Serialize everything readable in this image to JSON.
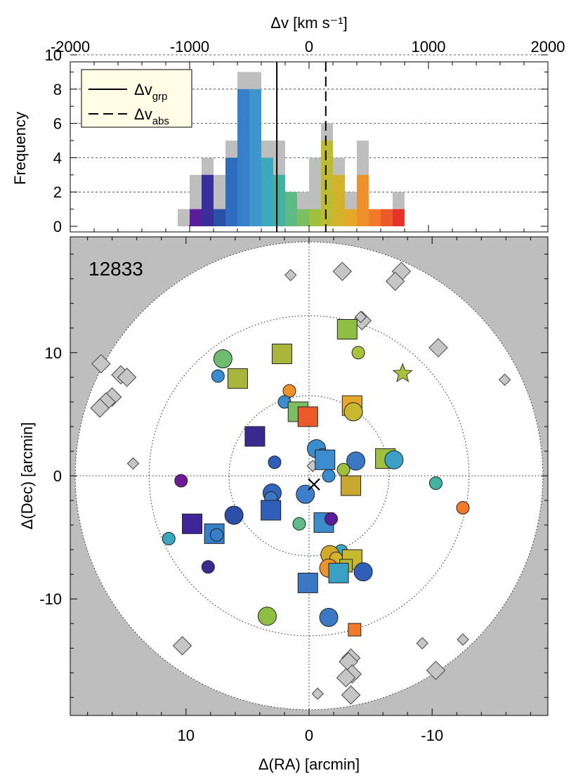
{
  "chart_data": [
    {
      "type": "bar",
      "panel": "histogram",
      "xlabel_top": "Δv [km s⁻¹]",
      "ylabel": "Frequency",
      "xlim": [
        -2000,
        2000
      ],
      "ylim": [
        0,
        10
      ],
      "xticks": [
        "-2000",
        "-1000",
        "0",
        "1000",
        "2000"
      ],
      "yticks": [
        "0",
        "2",
        "4",
        "6",
        "8",
        "10"
      ],
      "grid": "dashed horizontal at 2,4,6,8,10",
      "bin_width": 100,
      "bins_left_edge": [
        -1100,
        -1000,
        -900,
        -800,
        -700,
        -600,
        -500,
        -400,
        -300,
        -200,
        -100,
        0,
        100,
        200,
        300,
        400,
        500,
        600,
        700
      ],
      "total_counts": [
        1,
        3,
        4,
        3,
        5,
        9,
        9,
        5,
        5,
        2,
        2,
        4,
        6,
        4,
        2,
        5,
        1,
        1,
        2
      ],
      "member_counts": [
        0,
        1,
        3,
        1,
        4,
        8,
        8,
        4,
        3,
        2,
        1,
        1,
        5,
        3,
        1,
        3,
        1,
        1,
        1
      ],
      "member_colors": [
        "#7b12a0",
        "#5b1d9a",
        "#3a2f9a",
        "#2c4fa6",
        "#2e6cbf",
        "#3580c9",
        "#3f96cc",
        "#3aaabf",
        "#42b39f",
        "#5ebb86",
        "#7cbf62",
        "#9fbf3e",
        "#bdbb31",
        "#d3b32b",
        "#e4a92a",
        "#ed922a",
        "#f07a2a",
        "#ed5a2a",
        "#e5332a"
      ],
      "vlines": [
        {
          "label": "Δv_grp",
          "style": "solid",
          "x": -270
        },
        {
          "label": "Δv_abs",
          "style": "dashed",
          "x": 140
        }
      ],
      "legend": {
        "position": "top-left",
        "entries": [
          {
            "main": "Δv",
            "sub": "grp",
            "style": "solid"
          },
          {
            "main": "Δv",
            "sub": "abs",
            "style": "dashed"
          }
        ]
      }
    },
    {
      "type": "scatter",
      "panel": "sky_map",
      "label": "12833",
      "xlabel": "Δ(RA) [arcmin]",
      "ylabel": "Δ(Dec) [arcmin]",
      "xlim": [
        19,
        -19
      ],
      "ylim": [
        -19,
        19
      ],
      "xticks": [
        "10",
        "0",
        "-10"
      ],
      "yticks": [
        "10",
        "0",
        "-10"
      ],
      "circle_radii": [
        6.5,
        13,
        19
      ],
      "crosshair": [
        0,
        0
      ],
      "outside_shade": "#bebebe",
      "center_marker": {
        "x": -0.4,
        "y": -0.7,
        "symbol": "x"
      },
      "absorber": {
        "x": -7.6,
        "y": 8.3,
        "symbol": "star",
        "color": "#a8c23a"
      },
      "diamonds": [
        [
          1.5,
          16.3
        ],
        [
          -2.7,
          16.6
        ],
        [
          -7.5,
          16.6
        ],
        [
          -7.0,
          15.8
        ],
        [
          -4.3,
          12.6
        ],
        [
          -4.2,
          12.9
        ],
        [
          -10.5,
          10.4
        ],
        [
          -15.9,
          7.8
        ],
        [
          16.9,
          9.1
        ],
        [
          15.3,
          8.2
        ],
        [
          14.8,
          8.0
        ],
        [
          16.0,
          6.4
        ],
        [
          16.5,
          6.0
        ],
        [
          17.0,
          5.5
        ],
        [
          14.3,
          1.0
        ],
        [
          -0.3,
          0.8
        ],
        [
          10.3,
          -13.8
        ],
        [
          -9.2,
          -13.6
        ],
        [
          -12.5,
          -13.3
        ],
        [
          -3.4,
          -14.8
        ],
        [
          -3.2,
          -15.1
        ],
        [
          -10.3,
          -15.8
        ],
        [
          -3.5,
          -16.1
        ],
        [
          -3.0,
          -16.4
        ],
        [
          -0.7,
          -17.7
        ],
        [
          -3.4,
          -17.8
        ]
      ],
      "members": [
        {
          "x": -3.1,
          "y": 11.9,
          "s": "square",
          "c": "#8fbe45",
          "big": true
        },
        {
          "x": -4.0,
          "y": 10.0,
          "s": "circle",
          "c": "#a9c23e",
          "big": false
        },
        {
          "x": 7.0,
          "y": 9.5,
          "s": "circle",
          "c": "#6fbb70",
          "big": true
        },
        {
          "x": 2.2,
          "y": 9.9,
          "s": "square",
          "c": "#a8b63c",
          "big": true
        },
        {
          "x": 7.4,
          "y": 8.1,
          "s": "circle",
          "c": "#3b8ccd",
          "big": false
        },
        {
          "x": 5.8,
          "y": 7.9,
          "s": "square",
          "c": "#a8b63c",
          "big": true
        },
        {
          "x": 1.6,
          "y": 6.9,
          "s": "circle",
          "c": "#ed922a",
          "big": false
        },
        {
          "x": 2.0,
          "y": 6.0,
          "s": "circle",
          "c": "#3b8ccd",
          "big": false
        },
        {
          "x": 0.9,
          "y": 5.2,
          "s": "square",
          "c": "#7cbf62",
          "big": true
        },
        {
          "x": 0.1,
          "y": 4.8,
          "s": "square",
          "c": "#ea5a2a",
          "big": true
        },
        {
          "x": -3.5,
          "y": 5.7,
          "s": "square",
          "c": "#e4a92a",
          "big": true
        },
        {
          "x": -3.6,
          "y": 5.2,
          "s": "circle",
          "c": "#c8b830",
          "big": true
        },
        {
          "x": 4.4,
          "y": 3.2,
          "s": "square",
          "c": "#3a2a8f",
          "big": true
        },
        {
          "x": -0.6,
          "y": 2.2,
          "s": "circle",
          "c": "#3b8ccd",
          "big": true
        },
        {
          "x": -1.1,
          "y": 1.7,
          "s": "circle",
          "c": "#3b8ccd",
          "big": false
        },
        {
          "x": -1.3,
          "y": 1.3,
          "s": "square",
          "c": "#3b8ccd",
          "big": true
        },
        {
          "x": -3.8,
          "y": 1.2,
          "s": "circle",
          "c": "#3a78c4",
          "big": true
        },
        {
          "x": -6.2,
          "y": 1.4,
          "s": "square",
          "c": "#9fbf3e",
          "big": true
        },
        {
          "x": -6.8,
          "y": 1.4,
          "s": "circle",
          "c": "#cdb532",
          "big": false
        },
        {
          "x": -6.9,
          "y": 1.3,
          "s": "circle",
          "c": "#3aa0c4",
          "big": true
        },
        {
          "x": 2.8,
          "y": 1.1,
          "s": "circle",
          "c": "#2f5fb8",
          "big": false
        },
        {
          "x": -2.8,
          "y": 0.5,
          "s": "circle",
          "c": "#9fbf3e",
          "big": false
        },
        {
          "x": -1.6,
          "y": 0.0,
          "s": "circle",
          "c": "#3b8ccd",
          "big": false
        },
        {
          "x": -3.4,
          "y": -0.8,
          "s": "square",
          "c": "#c8a830",
          "big": true
        },
        {
          "x": 10.4,
          "y": -0.4,
          "s": "circle",
          "c": "#6f1898",
          "big": false
        },
        {
          "x": -10.3,
          "y": -0.6,
          "s": "circle",
          "c": "#42b39f",
          "big": false
        },
        {
          "x": 3.0,
          "y": -1.4,
          "s": "circle",
          "c": "#3266bd",
          "big": true
        },
        {
          "x": 3.1,
          "y": -1.8,
          "s": "circle",
          "c": "#3a78c4",
          "big": false
        },
        {
          "x": 0.3,
          "y": -1.5,
          "s": "circle",
          "c": "#3c7fcb",
          "big": true
        },
        {
          "x": -12.5,
          "y": -2.6,
          "s": "circle",
          "c": "#ef7a2a",
          "big": false
        },
        {
          "x": 3.1,
          "y": -2.8,
          "s": "square",
          "c": "#2f5fb8",
          "big": true
        },
        {
          "x": 6.1,
          "y": -3.2,
          "s": "circle",
          "c": "#2c4fa6",
          "big": true
        },
        {
          "x": -1.2,
          "y": -3.8,
          "s": "square",
          "c": "#3b8ccd",
          "big": true
        },
        {
          "x": -1.8,
          "y": -3.5,
          "s": "circle",
          "c": "#5b1d9a",
          "big": false
        },
        {
          "x": 9.5,
          "y": -3.9,
          "s": "square",
          "c": "#40259a",
          "big": true
        },
        {
          "x": 0.8,
          "y": -3.9,
          "s": "circle",
          "c": "#5ebb86",
          "big": false
        },
        {
          "x": 7.7,
          "y": -4.7,
          "s": "square",
          "c": "#3580c9",
          "big": true
        },
        {
          "x": 7.5,
          "y": -4.8,
          "s": "circle",
          "c": "#3580c9",
          "big": false
        },
        {
          "x": 11.4,
          "y": -5.1,
          "s": "circle",
          "c": "#3aa6c0",
          "big": false
        },
        {
          "x": -2.6,
          "y": -6.1,
          "s": "circle",
          "c": "#3aa6c0",
          "big": false
        },
        {
          "x": -1.7,
          "y": -6.4,
          "s": "circle",
          "c": "#d3a92b",
          "big": true
        },
        {
          "x": -2.2,
          "y": -6.7,
          "s": "circle",
          "c": "#d3b32b",
          "big": false
        },
        {
          "x": -3.5,
          "y": -6.8,
          "s": "square",
          "c": "#c8b830",
          "big": true
        },
        {
          "x": -3.0,
          "y": -7.3,
          "s": "square",
          "c": "#b5b833",
          "big": false
        },
        {
          "x": -1.6,
          "y": -7.5,
          "s": "circle",
          "c": "#ed922a",
          "big": true
        },
        {
          "x": 8.2,
          "y": -7.4,
          "s": "circle",
          "c": "#3a2a8f",
          "big": false
        },
        {
          "x": -2.4,
          "y": -7.9,
          "s": "square",
          "c": "#3aa0c4",
          "big": true
        },
        {
          "x": -4.4,
          "y": -7.8,
          "s": "circle",
          "c": "#2f5fb8",
          "big": true
        },
        {
          "x": 0.1,
          "y": -8.7,
          "s": "square",
          "c": "#3a78c4",
          "big": true
        },
        {
          "x": 3.4,
          "y": -11.4,
          "s": "circle",
          "c": "#8fbe45",
          "big": true
        },
        {
          "x": -1.6,
          "y": -11.5,
          "s": "circle",
          "c": "#3a78c4",
          "big": true
        },
        {
          "x": -3.7,
          "y": -12.5,
          "s": "square",
          "c": "#f07a2a",
          "big": false
        }
      ]
    }
  ]
}
